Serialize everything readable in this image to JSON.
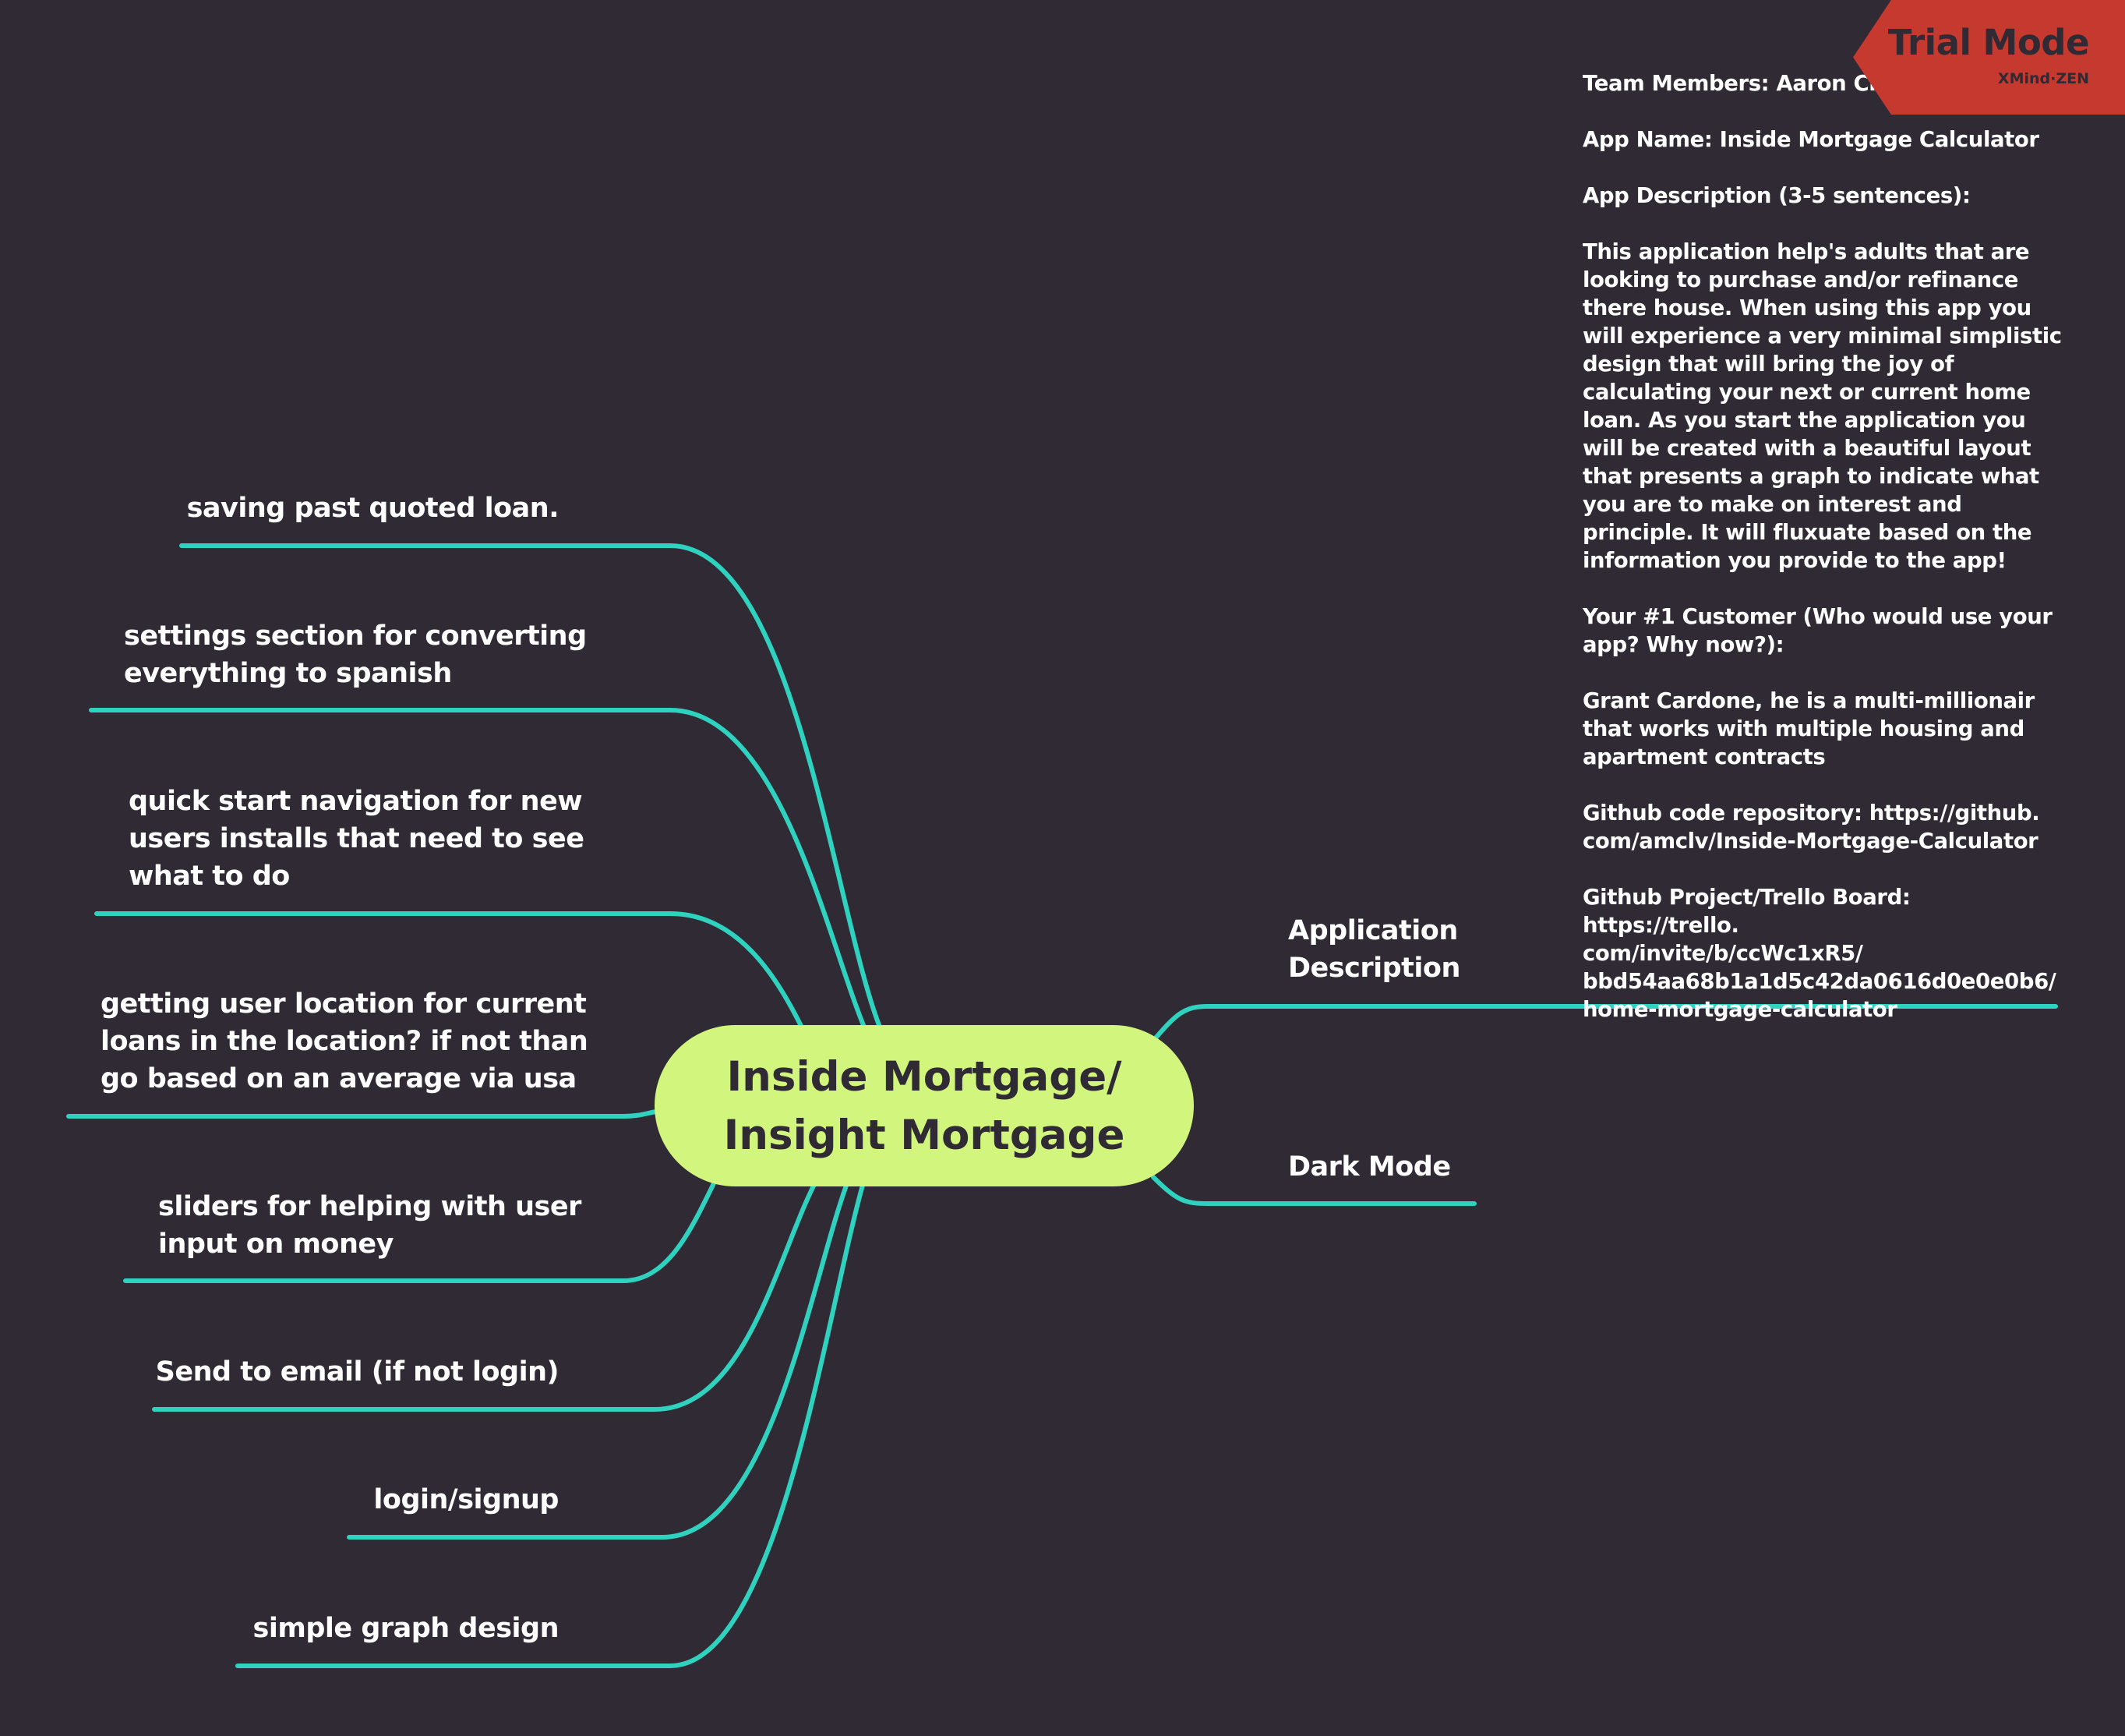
{
  "central_topic": {
    "line1": "Inside Mortgage/",
    "line2": "Insight Mortgage"
  },
  "left_topics": [
    {
      "lines": [
        "saving past quoted loan."
      ]
    },
    {
      "lines": [
        "settings section for converting",
        "everything to spanish"
      ]
    },
    {
      "lines": [
        "quick start navigation for new",
        "users installs that need to see",
        "what to do"
      ]
    },
    {
      "lines": [
        "getting user location for current",
        "loans in the location? if not than",
        "go based on an average via usa"
      ]
    },
    {
      "lines": [
        "sliders for helping with user",
        "input on money"
      ]
    },
    {
      "lines": [
        "Send to email (if not login)"
      ]
    },
    {
      "lines": [
        "login/signup"
      ]
    },
    {
      "lines": [
        "simple graph design"
      ]
    }
  ],
  "right_topics": [
    {
      "lines": [
        "Application",
        "Description"
      ]
    },
    {
      "lines": [
        "Dark Mode"
      ]
    }
  ],
  "description_note": {
    "team": "Team Members: Aaron Cleveland",
    "app_name": "App Name: Inside Mortgage Calculator",
    "desc_heading": "App Description (3-5 sentences):",
    "desc_body": "This application help's adults that are looking to purchase and/or refinance there house. When using this app you will experience a very minimal simplistic design that will bring the joy of calculating your next or current home loan. As you start the application you will be created with a beautiful layout that presents a graph to indicate what you are to make on interest and principle. It will fluxuate based on the information you provide to the app!",
    "customer_heading": "Your #1 Customer (Who would use your app? Why now?):",
    "customer_body": "Grant Cardone, he is a multi-millionair that works with multiple housing and apartment contracts",
    "github_repo": "Github code repository: https://github.\ncom/amclv/Inside-Mortgage-Calculator",
    "github_board": "Github Project/Trello Board: https://trello.\ncom/invite/b/ccWc1xR5/\nbbd54aa68b1a1d5c42da0616d0e0e0b6/\nhome-mortgage-calculator"
  },
  "trial_badge": {
    "title": "Trial Mode",
    "brand": "XMind·ZEN"
  },
  "colors": {
    "background": "#2f2a34",
    "branch": "#2ed2be",
    "central": "#d2f57e",
    "badge": "#c6392e"
  }
}
